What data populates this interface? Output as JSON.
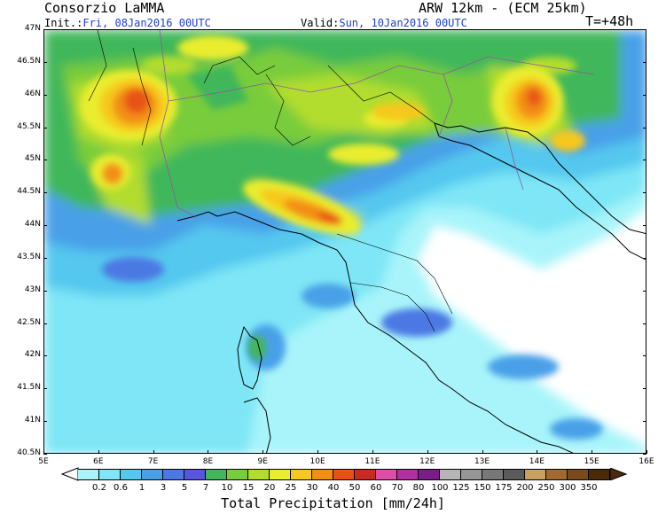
{
  "header": {
    "provider": "Consorzio LaMMA",
    "model": "ARW 12km - (ECM 25km)",
    "init_label": "Init.:",
    "init_value": "Fri, 08Jan2016 00UTC",
    "valid_label": "Valid:",
    "valid_value": "Sun, 10Jan2016 00UTC",
    "lead_time": "T=+48h"
  },
  "axes": {
    "lat_labels": [
      "47N",
      "46.5N",
      "46N",
      "45.5N",
      "45N",
      "44.5N",
      "44N",
      "43.5N",
      "43N",
      "42.5N",
      "42N",
      "41.5N",
      "41N",
      "40.5N"
    ],
    "lon_labels": [
      "5E",
      "6E",
      "7E",
      "8E",
      "9E",
      "10E",
      "11E",
      "12E",
      "13E",
      "14E",
      "15E",
      "16E"
    ]
  },
  "colorbar": {
    "title": "Total Precipitation [mm/24h]",
    "thresholds": [
      "0.2",
      "0.6",
      "1",
      "3",
      "5",
      "7",
      "10",
      "15",
      "20",
      "25",
      "30",
      "40",
      "50",
      "60",
      "70",
      "80",
      "100",
      "125",
      "150",
      "175",
      "200",
      "250",
      "300",
      "350"
    ],
    "colors": [
      "#a8f4fa",
      "#7ee6f6",
      "#55c8ef",
      "#4aa0e8",
      "#4b78e3",
      "#5a55df",
      "#3fb75a",
      "#79cc3b",
      "#b2dd2e",
      "#eaed2e",
      "#f7c81f",
      "#f28e14",
      "#e85314",
      "#c72a1e",
      "#dd4fa6",
      "#b02fa3",
      "#7c1c8a",
      "#b6b6b6",
      "#969696",
      "#787878",
      "#5a5a5a",
      "#c8a060",
      "#a06a30",
      "#7a4a1a",
      "#4a2a0a"
    ]
  }
}
